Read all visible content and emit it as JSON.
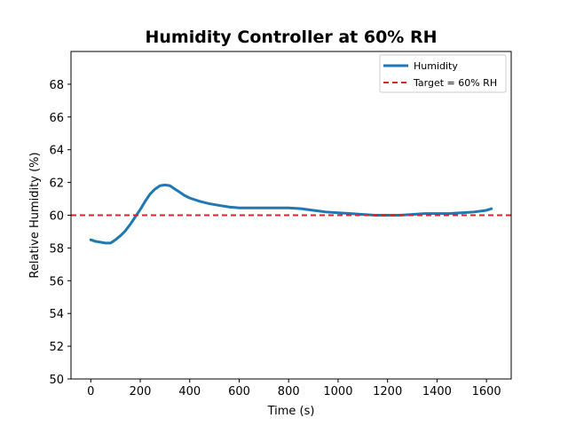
{
  "chart_data": {
    "type": "line",
    "title": "Humidity Controller at 60% RH",
    "xlabel": "Time (s)",
    "ylabel": "Relative Humidity (%)",
    "xlim": [
      -80,
      1700
    ],
    "ylim": [
      50,
      70
    ],
    "xticks": [
      0,
      200,
      400,
      600,
      800,
      1000,
      1200,
      1400,
      1600
    ],
    "yticks": [
      50,
      52,
      54,
      56,
      58,
      60,
      62,
      64,
      66,
      68
    ],
    "grid": false,
    "legend_position": "top-right",
    "series": [
      {
        "name": "Humidity",
        "color": "#1f77b4",
        "style": "solid",
        "x": [
          0,
          20,
          40,
          60,
          80,
          100,
          120,
          140,
          160,
          180,
          200,
          220,
          240,
          260,
          280,
          300,
          320,
          340,
          360,
          380,
          400,
          440,
          480,
          520,
          560,
          600,
          650,
          700,
          750,
          800,
          850,
          900,
          950,
          1000,
          1050,
          1100,
          1150,
          1200,
          1250,
          1300,
          1350,
          1400,
          1450,
          1500,
          1550,
          1600,
          1620
        ],
        "y": [
          58.5,
          58.4,
          58.35,
          58.3,
          58.3,
          58.5,
          58.75,
          59.05,
          59.45,
          59.9,
          60.35,
          60.85,
          61.3,
          61.6,
          61.8,
          61.85,
          61.8,
          61.6,
          61.4,
          61.2,
          61.05,
          60.85,
          60.7,
          60.6,
          60.5,
          60.45,
          60.45,
          60.45,
          60.45,
          60.45,
          60.4,
          60.3,
          60.2,
          60.15,
          60.1,
          60.05,
          60.0,
          60.0,
          60.0,
          60.05,
          60.1,
          60.1,
          60.1,
          60.15,
          60.2,
          60.3,
          60.4
        ]
      },
      {
        "name": "Target = 60% RH",
        "color": "#d62728",
        "style": "dashed",
        "constant_y": 60
      }
    ]
  }
}
